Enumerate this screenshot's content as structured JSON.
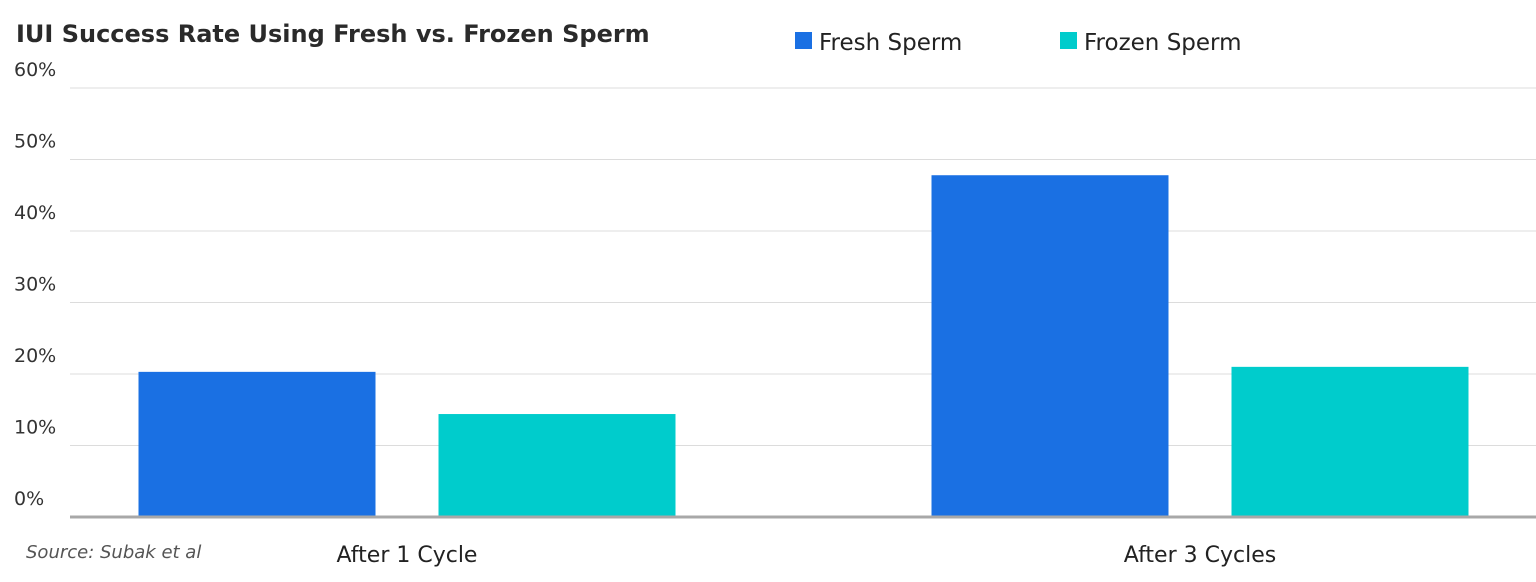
{
  "chart_data": {
    "type": "bar",
    "title": "IUI Success Rate Using Fresh vs. Frozen Sperm",
    "source": "Source: Subak et al",
    "categories": [
      "After 1 Cycle",
      "After 3 Cycles"
    ],
    "series": [
      {
        "name": "Fresh Sperm",
        "color": "#1a70e3",
        "values": [
          20.3,
          47.8
        ]
      },
      {
        "name": "Frozen Sperm",
        "color": "#00cccc",
        "values": [
          14.4,
          21.0
        ]
      }
    ],
    "ylim": [
      0,
      60
    ],
    "yticks": [
      {
        "value": 0,
        "label": "0%"
      },
      {
        "value": 10,
        "label": "10%"
      },
      {
        "value": 20,
        "label": "20%"
      },
      {
        "value": 30,
        "label": "30%"
      },
      {
        "value": 40,
        "label": "40%"
      },
      {
        "value": 50,
        "label": "50%"
      },
      {
        "value": 60,
        "label": "60%"
      }
    ],
    "grid": true,
    "legend": "top"
  }
}
